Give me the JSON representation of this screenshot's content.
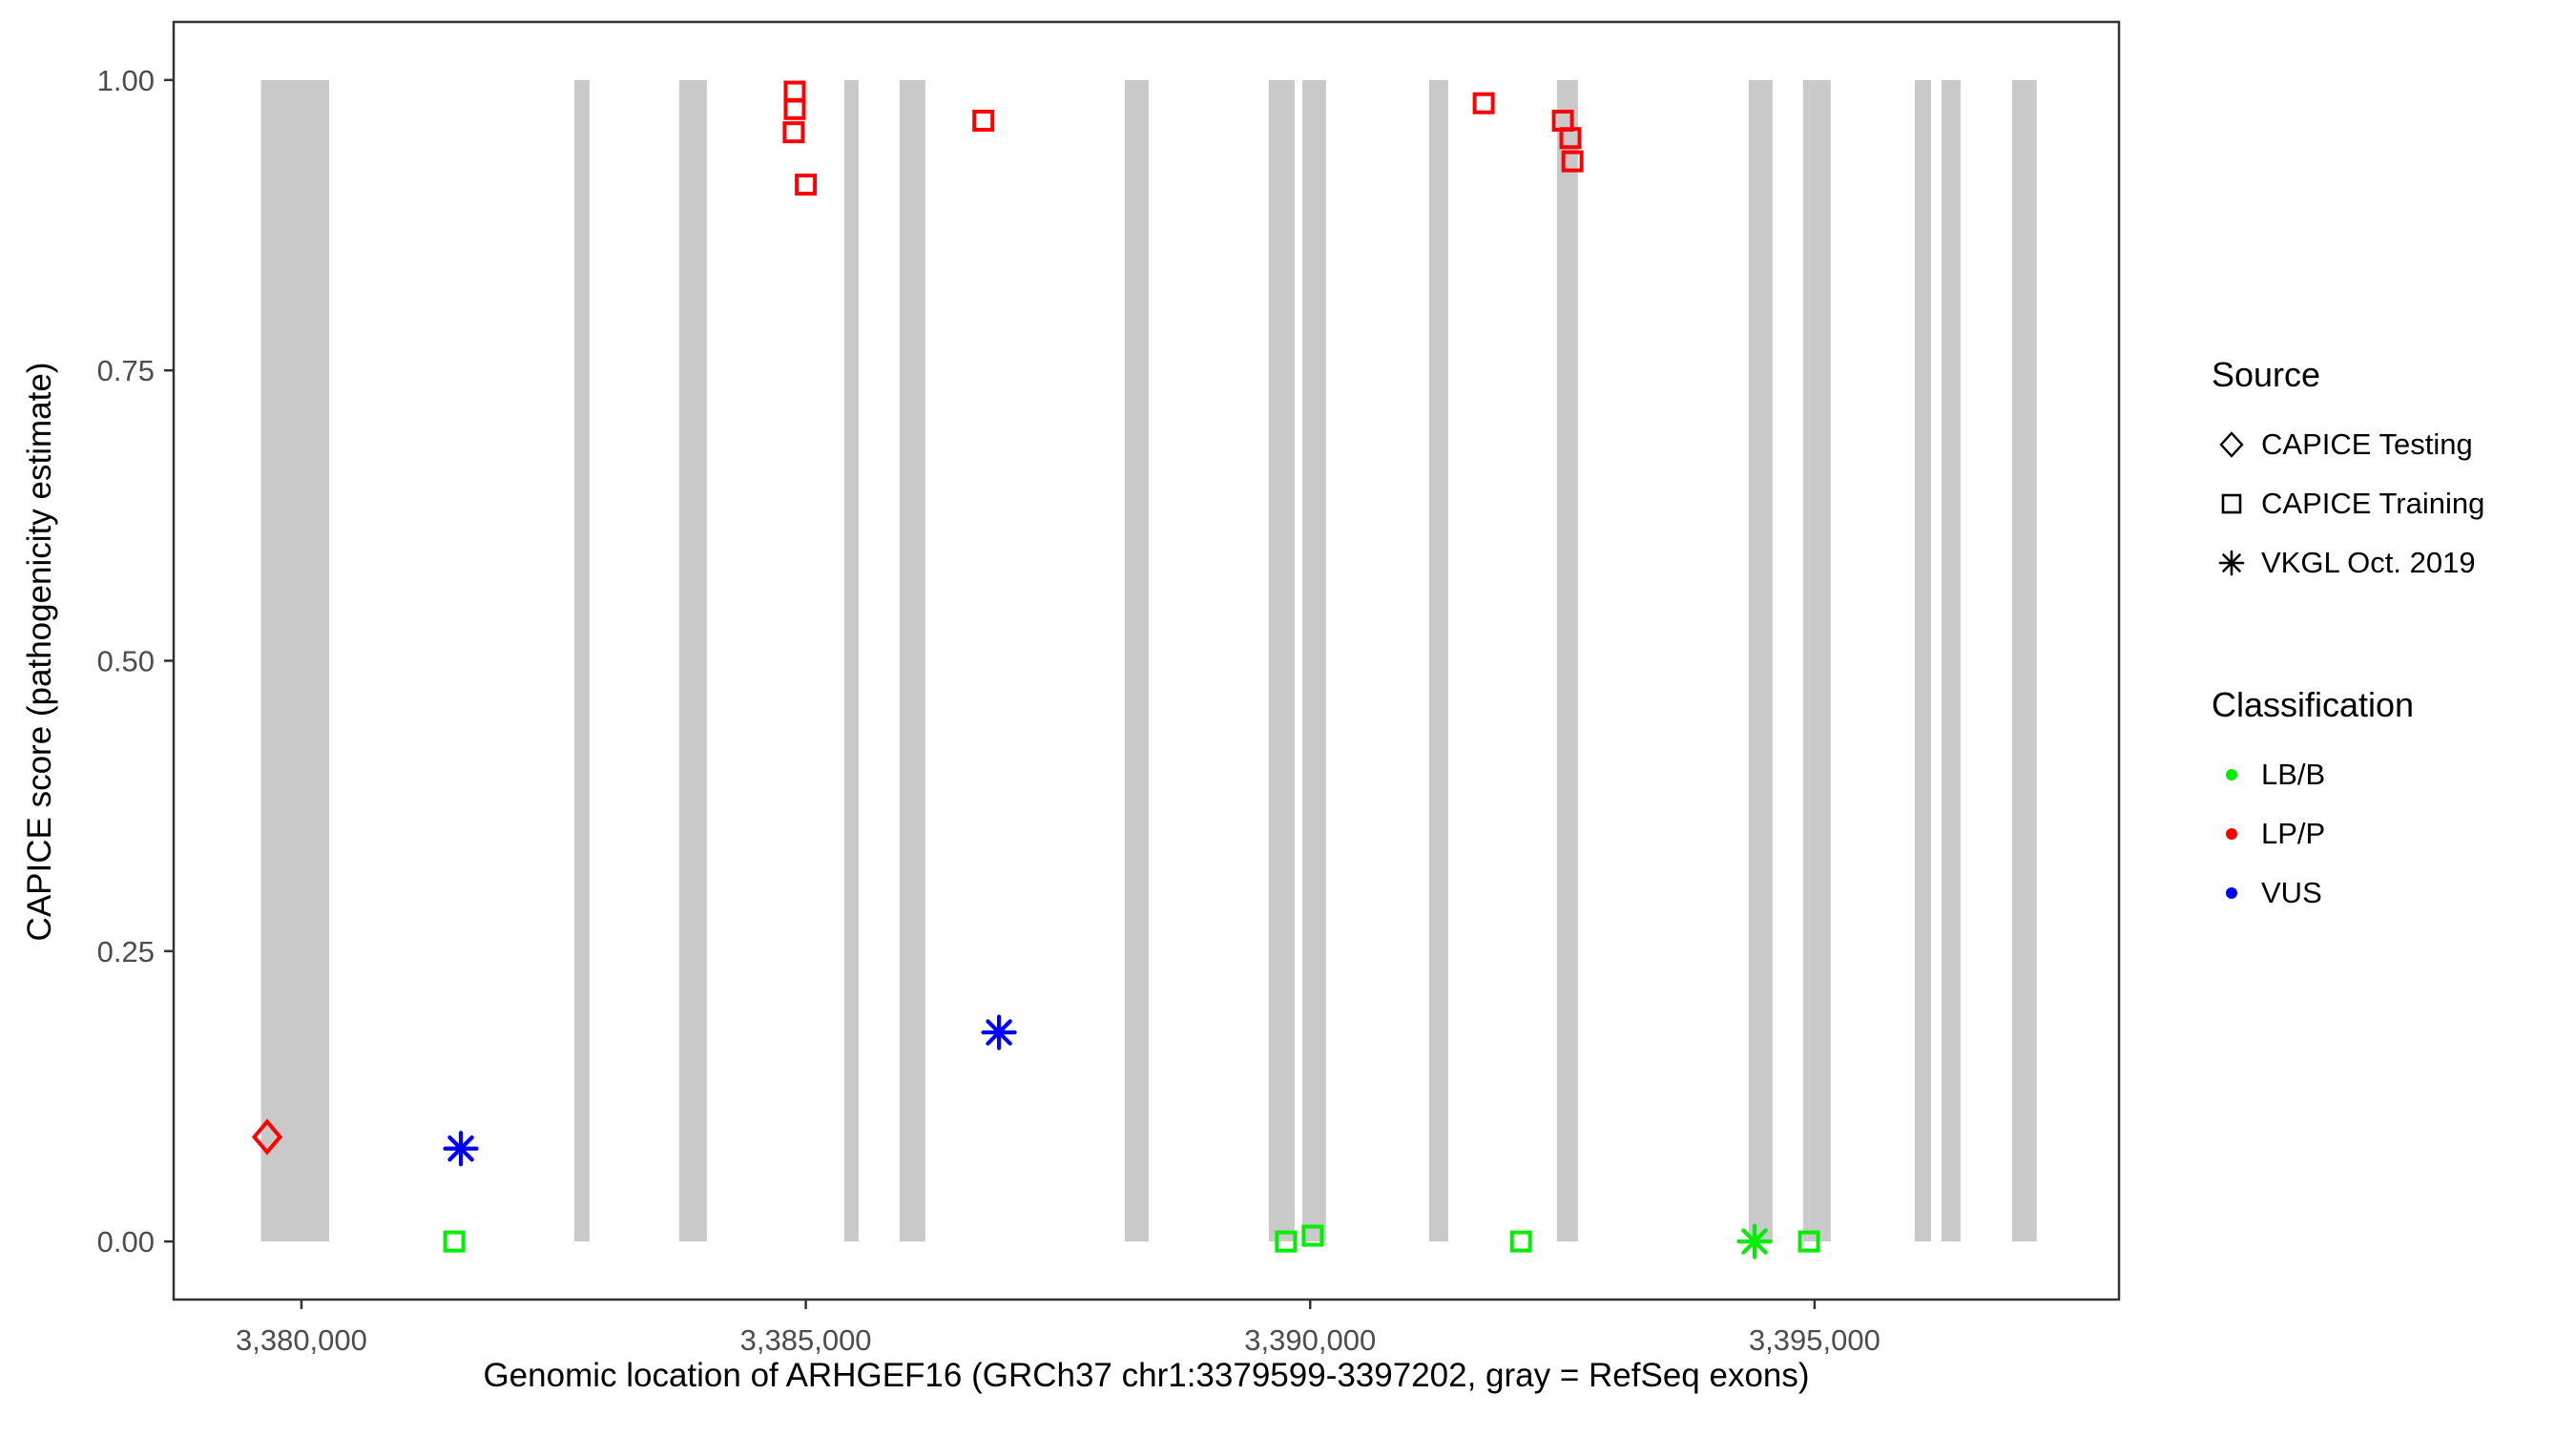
{
  "chart_data": {
    "type": "scatter",
    "title": "",
    "xlabel": "Genomic location of ARHGEF16 (GRCh37 chr1:3379599-3397202, gray = RefSeq exons)",
    "ylabel": "CAPICE score (pathogenicity estimate)",
    "x_domain": [
      3378733,
      3398018
    ],
    "y_domain": [
      -0.05,
      1.05
    ],
    "x_ticks": [
      {
        "value": 3380000,
        "label": "3,380,000"
      },
      {
        "value": 3385000,
        "label": "3,385,000"
      },
      {
        "value": 3390000,
        "label": "3,390,000"
      },
      {
        "value": 3395000,
        "label": "3,395,000"
      }
    ],
    "y_ticks": [
      {
        "value": 0.0,
        "label": "0.00"
      },
      {
        "value": 0.25,
        "label": "0.25"
      },
      {
        "value": 0.5,
        "label": "0.50"
      },
      {
        "value": 0.75,
        "label": "0.75"
      },
      {
        "value": 1.0,
        "label": "1.00"
      }
    ],
    "gene": {
      "name": "ARHGEF16",
      "assembly": "GRCh37",
      "chrom": "chr1",
      "start": 3379599,
      "end": 3397202
    },
    "exon_color": "#C9C9C9",
    "axis_color": "#333333",
    "tick_label_color": "#4D4D4D",
    "refseq_exons": [
      {
        "start": 3379599,
        "end": 3380275
      },
      {
        "start": 3382705,
        "end": 3382856
      },
      {
        "start": 3383745,
        "end": 3384019
      },
      {
        "start": 3385381,
        "end": 3385523
      },
      {
        "start": 3385929,
        "end": 3386185
      },
      {
        "start": 3388162,
        "end": 3388398
      },
      {
        "start": 3389590,
        "end": 3389846
      },
      {
        "start": 3389921,
        "end": 3390157
      },
      {
        "start": 3391179,
        "end": 3391368
      },
      {
        "start": 3392446,
        "end": 3392654
      },
      {
        "start": 3394347,
        "end": 3394584
      },
      {
        "start": 3394886,
        "end": 3395160
      },
      {
        "start": 3395993,
        "end": 3396154
      },
      {
        "start": 3396258,
        "end": 3396447
      },
      {
        "start": 3396958,
        "end": 3397202
      }
    ],
    "classification_colors": {
      "LB/B": "#00EE00",
      "LP/P": "#FF0000",
      "VUS": "#0000FF"
    },
    "series": [
      {
        "name": "CAPICE Testing",
        "marker": "diamond",
        "points": [
          {
            "pos": 3379660,
            "score": 0.09,
            "classification": "LP/P"
          }
        ]
      },
      {
        "name": "CAPICE Training",
        "marker": "square",
        "points": [
          {
            "pos": 3381515,
            "score": 0.0,
            "classification": "LB/B"
          },
          {
            "pos": 3384880,
            "score": 0.955,
            "classification": "LP/P"
          },
          {
            "pos": 3384890,
            "score": 0.975,
            "classification": "LP/P"
          },
          {
            "pos": 3384890,
            "score": 0.99,
            "classification": "LP/P"
          },
          {
            "pos": 3385000,
            "score": 0.91,
            "classification": "LP/P"
          },
          {
            "pos": 3386760,
            "score": 0.965,
            "classification": "LP/P"
          },
          {
            "pos": 3389760,
            "score": 0.0,
            "classification": "LB/B"
          },
          {
            "pos": 3390025,
            "score": 0.005,
            "classification": "LB/B"
          },
          {
            "pos": 3391720,
            "score": 0.98,
            "classification": "LP/P"
          },
          {
            "pos": 3392090,
            "score": 0.0,
            "classification": "LB/B"
          },
          {
            "pos": 3392505,
            "score": 0.965,
            "classification": "LP/P"
          },
          {
            "pos": 3392580,
            "score": 0.95,
            "classification": "LP/P"
          },
          {
            "pos": 3392600,
            "score": 0.93,
            "classification": "LP/P"
          },
          {
            "pos": 3394945,
            "score": 0.0,
            "classification": "LB/B"
          }
        ]
      },
      {
        "name": "VKGL Oct. 2019",
        "marker": "asterisk",
        "points": [
          {
            "pos": 3381580,
            "score": 0.08,
            "classification": "VUS"
          },
          {
            "pos": 3386915,
            "score": 0.18,
            "classification": "VUS"
          },
          {
            "pos": 3394405,
            "score": 0.0,
            "classification": "LB/B"
          }
        ]
      }
    ]
  },
  "legend": {
    "source": {
      "title": "Source",
      "items": [
        {
          "label": "CAPICE Testing",
          "marker": "diamond"
        },
        {
          "label": "CAPICE Training",
          "marker": "square"
        },
        {
          "label": "VKGL Oct. 2019",
          "marker": "asterisk"
        }
      ]
    },
    "classification": {
      "title": "Classification",
      "items": [
        {
          "label": "LB/B",
          "color": "#00EE00"
        },
        {
          "label": "LP/P",
          "color": "#FF0000"
        },
        {
          "label": "VUS",
          "color": "#0000FF"
        }
      ]
    }
  }
}
